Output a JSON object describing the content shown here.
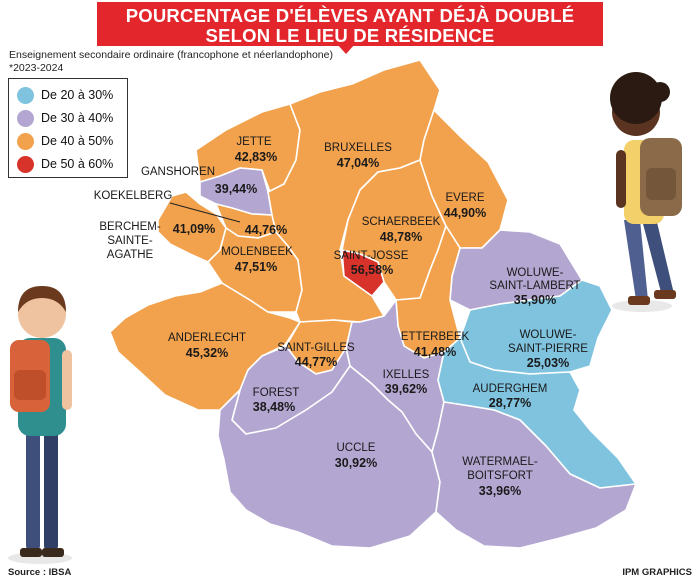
{
  "title": {
    "line1": "POURCENTAGE D'ÉLÈVES AYANT DÉJÀ DOUBLÉ",
    "line2": "SELON LE LIEU DE RÉSIDENCE"
  },
  "subtitle": "Enseignement secondaire ordinaire (francophone et néerlandophone)",
  "school_year": "*2023-2024",
  "legend": [
    {
      "label": "De 20 à 30%",
      "color": "#7fc3df"
    },
    {
      "label": "De 30 à 40%",
      "color": "#b3a6d1"
    },
    {
      "label": "De 40 à 50%",
      "color": "#f2a24d"
    },
    {
      "label": "De 50 à 60%",
      "color": "#d7332b"
    }
  ],
  "communes": {
    "jette": {
      "name": "JETTE",
      "value": "42,83%"
    },
    "bruxelles": {
      "name": "BRUXELLES",
      "value": "47,04%"
    },
    "ganshoren": {
      "name": "GANSHOREN",
      "value": "39,44%"
    },
    "koekelberg": {
      "name": "KOEKELBERG",
      "value": "44,76%"
    },
    "berchem": {
      "name_l1": "BERCHEM-",
      "name_l2": "SAINTE-",
      "name_l3": "AGATHE",
      "value": "41,09%"
    },
    "molenbeek": {
      "name": "MOLENBEEK",
      "value": "47,51%"
    },
    "schaerbeek": {
      "name": "SCHAERBEEK",
      "value": "48,78%"
    },
    "evere": {
      "name": "EVERE",
      "value": "44,90%"
    },
    "saint_josse": {
      "name": "SAINT-JOSSE",
      "value": "56,58%"
    },
    "woluwe_sl": {
      "name_l1": "WOLUWE-",
      "name_l2": "SAINT-LAMBERT",
      "value": "35,90%"
    },
    "anderlecht": {
      "name": "ANDERLECHT",
      "value": "45,32%"
    },
    "saint_gilles": {
      "name": "SAINT-GILLES",
      "value": "44,77%"
    },
    "etterbeek": {
      "name": "ETTERBEEK",
      "value": "41,48%"
    },
    "woluwe_sp": {
      "name_l1": "WOLUWE-",
      "name_l2": "SAINT-PIERRE",
      "value": "25,03%"
    },
    "forest": {
      "name": "FOREST",
      "value": "38,48%"
    },
    "ixelles": {
      "name": "IXELLES",
      "value": "39,62%"
    },
    "auderghem": {
      "name": "AUDERGHEM",
      "value": "28,77%"
    },
    "uccle": {
      "name": "UCCLE",
      "value": "30,92%"
    },
    "watermael": {
      "name_l1": "WATERMAEL-",
      "name_l2": "BOITSFORT",
      "value": "33,96%"
    }
  },
  "source": "Source : IBSA",
  "credit": "IPM GRAPHICS"
}
